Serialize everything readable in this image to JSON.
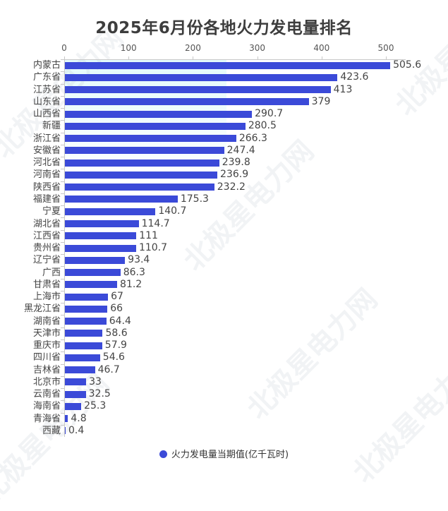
{
  "title": "2025年6月份各地火力发电量排名",
  "legend": {
    "label": "火力发电量当期值(亿千瓦时)",
    "color": "#3b4ad8"
  },
  "watermark": "北极星电力网",
  "chart_data": {
    "type": "bar",
    "orientation": "horizontal",
    "title": "2025年6月份各地火力发电量排名",
    "xlabel": "",
    "ylabel": "",
    "xlim": [
      0,
      530
    ],
    "x_ticks": [
      "0",
      "100",
      "200",
      "300",
      "400",
      "500"
    ],
    "grid": false,
    "legend_position": "bottom",
    "categories": [
      "内蒙古",
      "广东省",
      "江苏省",
      "山东省",
      "山西省",
      "新疆",
      "浙江省",
      "安徽省",
      "河北省",
      "河南省",
      "陕西省",
      "福建省",
      "宁夏",
      "湖北省",
      "江西省",
      "贵州省",
      "辽宁省",
      "广西",
      "甘肃省",
      "上海市",
      "黑龙江省",
      "湖南省",
      "天津市",
      "重庆市",
      "四川省",
      "吉林省",
      "北京市",
      "云南省",
      "海南省",
      "青海省",
      "西藏"
    ],
    "series": [
      {
        "name": "火力发电量当期值(亿千瓦时)",
        "color": "#3b4ad8",
        "values": [
          505.6,
          423.6,
          413,
          379,
          290.7,
          280.5,
          266.3,
          247.4,
          239.8,
          236.9,
          232.2,
          175.3,
          140.7,
          114.7,
          111,
          110.7,
          93.4,
          86.3,
          81.2,
          67,
          66,
          64.4,
          58.6,
          57.9,
          54.6,
          46.7,
          33,
          32.5,
          25.3,
          4.8,
          0.4
        ]
      }
    ],
    "value_labels": [
      "505.6",
      "423.6",
      "413",
      "379",
      "290.7",
      "280.5",
      "266.3",
      "247.4",
      "239.8",
      "236.9",
      "232.2",
      "175.3",
      "140.7",
      "114.7",
      "111",
      "110.7",
      "93.4",
      "86.3",
      "81.2",
      "67",
      "66",
      "64.4",
      "58.6",
      "57.9",
      "54.6",
      "46.7",
      "33",
      "32.5",
      "25.3",
      "4.8",
      "0.4"
    ]
  }
}
